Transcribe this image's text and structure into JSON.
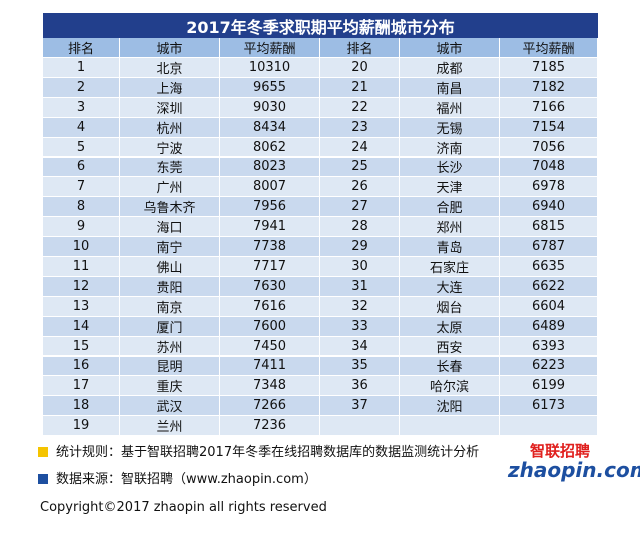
{
  "title": "2017年冬季求职期平均薪酬城市分布",
  "table": {
    "headers": [
      "排名",
      "城市",
      "平均薪酬",
      "排名",
      "城市",
      "平均薪酬"
    ],
    "left_rows": [
      [
        1,
        "北京",
        10310
      ],
      [
        2,
        "上海",
        9655
      ],
      [
        3,
        "深圳",
        9030
      ],
      [
        4,
        "杭州",
        8434
      ],
      [
        5,
        "宁波",
        8062
      ],
      [
        6,
        "东莞",
        8023
      ],
      [
        7,
        "广州",
        8007
      ],
      [
        8,
        "乌鲁木齐",
        7956
      ],
      [
        9,
        "海口",
        7941
      ],
      [
        10,
        "南宁",
        7738
      ],
      [
        11,
        "佛山",
        7717
      ],
      [
        12,
        "贵阳",
        7630
      ],
      [
        13,
        "南京",
        7616
      ],
      [
        14,
        "厦门",
        7600
      ],
      [
        15,
        "苏州",
        7450
      ],
      [
        16,
        "昆明",
        7411
      ],
      [
        17,
        "重庆",
        7348
      ],
      [
        18,
        "武汉",
        7266
      ],
      [
        19,
        "兰州",
        7236
      ]
    ],
    "right_rows": [
      [
        20,
        "成都",
        7185
      ],
      [
        21,
        "南昌",
        7182
      ],
      [
        22,
        "福州",
        7166
      ],
      [
        23,
        "无锡",
        7154
      ],
      [
        24,
        "济南",
        7056
      ],
      [
        25,
        "长沙",
        7048
      ],
      [
        26,
        "天津",
        6978
      ],
      [
        27,
        "合肥",
        6940
      ],
      [
        28,
        "郑州",
        6815
      ],
      [
        29,
        "青岛",
        6787
      ],
      [
        30,
        "石家庄",
        6635
      ],
      [
        31,
        "大连",
        6622
      ],
      [
        32,
        "烟台",
        6604
      ],
      [
        33,
        "太原",
        6489
      ],
      [
        34,
        "西安",
        6393
      ],
      [
        35,
        "长春",
        6223
      ],
      [
        36,
        "哈尔滨",
        6199
      ],
      [
        37,
        "沈阳",
        6173
      ]
    ]
  },
  "notes": [
    "统计规则：基于智联招聘2017年冬季在线招聘数据库的数据监测统计分析",
    "数据来源：智联招聘（www.zhaopin.com）"
  ],
  "logo": {
    "cn": "智联招聘",
    "en": "zhaopin.com"
  },
  "copyright": "Copyright©2017 zhaopin all rights reserved"
}
